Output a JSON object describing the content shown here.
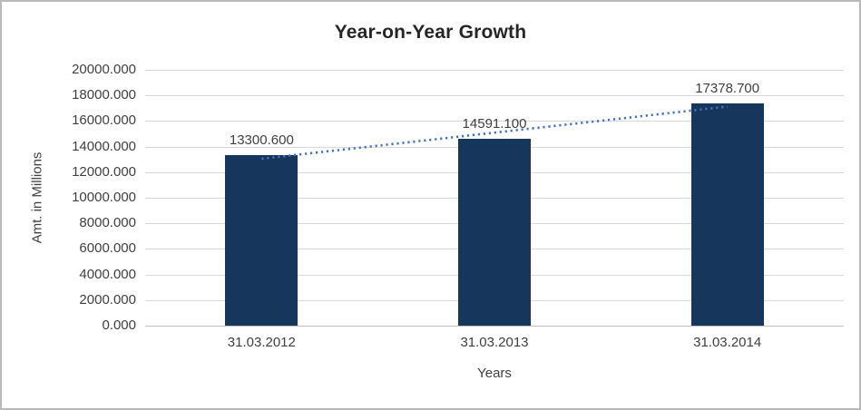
{
  "chart_data": {
    "type": "bar",
    "title": "Year-on-Year Growth",
    "categories": [
      "31.03.2012",
      "31.03.2013",
      "31.03.2014"
    ],
    "values": [
      13300.6,
      14591.1,
      17378.7
    ],
    "data_labels": [
      "13300.600",
      "14591.100",
      "17378.700"
    ],
    "xlabel": "Years",
    "ylabel": "Amt. in Millions",
    "ylim": [
      0,
      20000
    ],
    "ytick_step": 2000,
    "ytick_labels": [
      "0.000",
      "2000.000",
      "4000.000",
      "6000.000",
      "8000.000",
      "10000.000",
      "12000.000",
      "14000.000",
      "16000.000",
      "18000.000",
      "20000.000"
    ],
    "grid": true,
    "legend": "none",
    "bar_color": "#16365C",
    "trendline": {
      "type": "linear",
      "style": "dotted",
      "color": "#4472C4"
    }
  }
}
